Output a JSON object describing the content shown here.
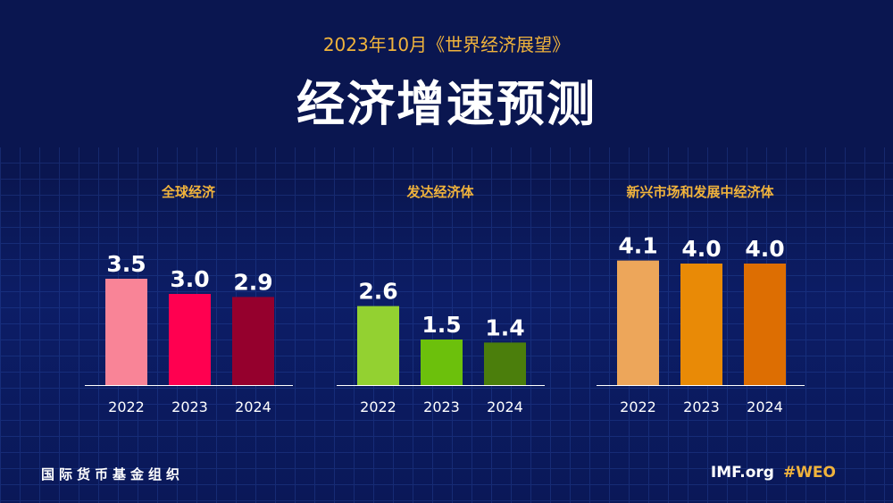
{
  "header": {
    "subtitle": "2023年10月《世界经济展望》",
    "title": "经济增速预测"
  },
  "chart_data": [
    {
      "type": "bar",
      "title": "全球经济",
      "categories": [
        "2022",
        "2023",
        "2024"
      ],
      "values": [
        3.5,
        3.0,
        2.9
      ],
      "colors": [
        "#f98497",
        "#ff0050",
        "#95002d"
      ]
    },
    {
      "type": "bar",
      "title": "发达经济体",
      "categories": [
        "2022",
        "2023",
        "2024"
      ],
      "values": [
        2.6,
        1.5,
        1.4
      ],
      "colors": [
        "#93d131",
        "#6cc00c",
        "#4b7e0c"
      ]
    },
    {
      "type": "bar",
      "title": "新兴市场和发展中经济体",
      "categories": [
        "2022",
        "2023",
        "2024"
      ],
      "values": [
        4.1,
        4.0,
        4.0
      ],
      "colors": [
        "#eda65a",
        "#e98a06",
        "#dd6e02"
      ]
    }
  ],
  "footer": {
    "org": "国际货币基金组织",
    "site": "IMF.org",
    "tag": "#WEO"
  },
  "colors": {
    "background": "#0a1650",
    "accent": "#f0b33c"
  }
}
